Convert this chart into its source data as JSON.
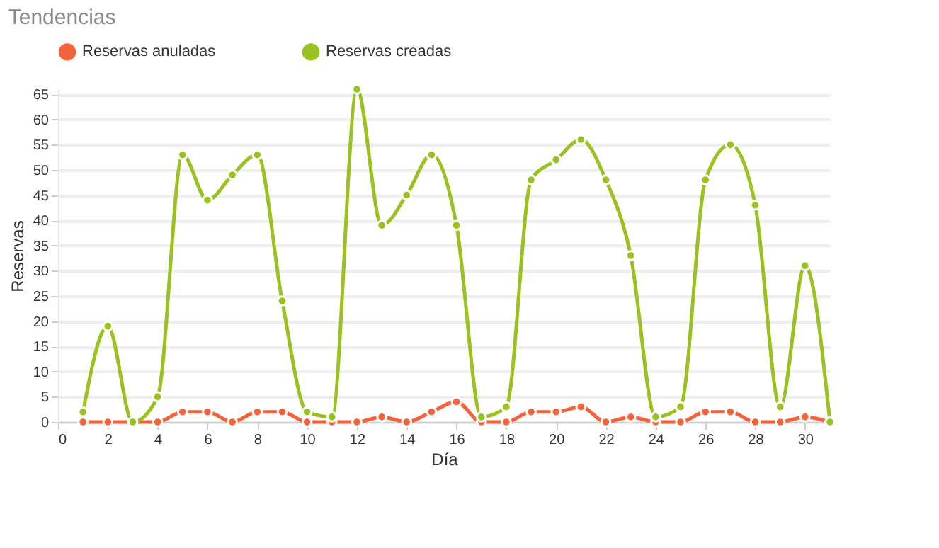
{
  "chart_data": {
    "type": "line",
    "title": "Tendencias",
    "xlabel": "Día",
    "ylabel": "Reservas",
    "x": [
      1,
      2,
      3,
      4,
      5,
      6,
      7,
      8,
      9,
      10,
      11,
      12,
      13,
      14,
      15,
      16,
      17,
      18,
      19,
      20,
      21,
      22,
      23,
      24,
      25,
      26,
      27,
      28,
      29,
      30,
      31
    ],
    "series": [
      {
        "name": "Reservas anuladas",
        "color": "#f4623a",
        "values": [
          0,
          0,
          0,
          0,
          2,
          2,
          0,
          2,
          2,
          0,
          0,
          0,
          1,
          0,
          2,
          4,
          0,
          0,
          2,
          2,
          3,
          0,
          1,
          0,
          0,
          2,
          2,
          0,
          0,
          1,
          0
        ]
      },
      {
        "name": "Reservas creadas",
        "color": "#98c21f",
        "values": [
          2,
          19,
          0,
          5,
          53,
          44,
          49,
          53,
          24,
          2,
          1,
          66,
          39,
          45,
          53,
          39,
          1,
          3,
          48,
          52,
          56,
          48,
          33,
          1,
          3,
          48,
          55,
          43,
          3,
          31,
          0
        ]
      }
    ],
    "xlim": [
      0,
      31
    ],
    "xticks": [
      0,
      2,
      4,
      6,
      8,
      10,
      12,
      14,
      16,
      18,
      20,
      22,
      24,
      26,
      28,
      30
    ],
    "ylim": [
      0,
      66
    ],
    "yticks": [
      0,
      5,
      10,
      15,
      20,
      25,
      30,
      35,
      40,
      45,
      50,
      55,
      60,
      65
    ],
    "grid": "y",
    "legend": "top",
    "marker": "circle",
    "line_style": "solid"
  }
}
